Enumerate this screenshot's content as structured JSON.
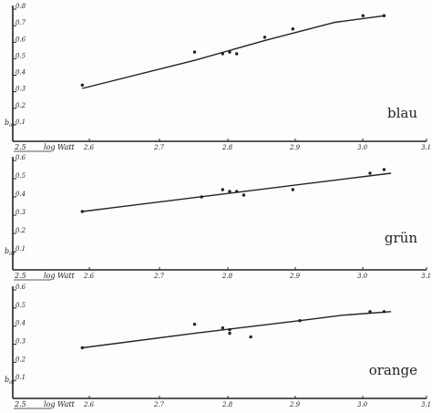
{
  "chart_data": [
    {
      "type": "scatter",
      "series_label": "blau",
      "ylabel": "b",
      "ylabel_sub": "01",
      "xlabel_left": "2.5",
      "xlabel_unit": "log Watt",
      "x_ticks": [
        "2.6",
        "2.7",
        "2.8",
        "2.9",
        "3.0",
        "3.1"
      ],
      "y_ticks": [
        "0.1",
        "0.2",
        "0.3",
        "0.4",
        "0.5",
        "0.6",
        "0.7",
        "0.8"
      ],
      "xlim": [
        2.5,
        3.1
      ],
      "ylim": [
        0,
        0.8
      ],
      "points": [
        {
          "x": 2.59,
          "y": 0.34
        },
        {
          "x": 2.75,
          "y": 0.54
        },
        {
          "x": 2.79,
          "y": 0.53
        },
        {
          "x": 2.8,
          "y": 0.54
        },
        {
          "x": 2.81,
          "y": 0.53
        },
        {
          "x": 2.85,
          "y": 0.63
        },
        {
          "x": 2.89,
          "y": 0.68
        },
        {
          "x": 2.99,
          "y": 0.76
        },
        {
          "x": 3.02,
          "y": 0.76
        }
      ],
      "fit_line": [
        {
          "x": 2.59,
          "y": 0.32
        },
        {
          "x": 2.75,
          "y": 0.49
        },
        {
          "x": 2.85,
          "y": 0.61
        },
        {
          "x": 2.95,
          "y": 0.72
        },
        {
          "x": 3.02,
          "y": 0.76
        }
      ]
    },
    {
      "type": "scatter",
      "series_label": "grün",
      "ylabel": "b",
      "ylabel_sub": "04",
      "xlabel_left": "2.5",
      "xlabel_unit": "log Watt",
      "x_ticks": [
        "2.6",
        "2.7",
        "2.8",
        "2.9",
        "3.0",
        "3.1"
      ],
      "y_ticks": [
        "0.1",
        "0.2",
        "0.3",
        "0.4",
        "0.5",
        "0.6"
      ],
      "xlim": [
        2.5,
        3.1
      ],
      "ylim": [
        0,
        0.6
      ],
      "points": [
        {
          "x": 2.59,
          "y": 0.32
        },
        {
          "x": 2.76,
          "y": 0.4
        },
        {
          "x": 2.79,
          "y": 0.44
        },
        {
          "x": 2.8,
          "y": 0.43
        },
        {
          "x": 2.81,
          "y": 0.43
        },
        {
          "x": 2.82,
          "y": 0.41
        },
        {
          "x": 2.89,
          "y": 0.44
        },
        {
          "x": 3.0,
          "y": 0.53
        },
        {
          "x": 3.02,
          "y": 0.55
        }
      ],
      "fit_line": [
        {
          "x": 2.59,
          "y": 0.32
        },
        {
          "x": 3.03,
          "y": 0.53
        }
      ]
    },
    {
      "type": "scatter",
      "series_label": "orange",
      "ylabel": "b",
      "ylabel_sub": "01",
      "xlabel_left": "2.5",
      "xlabel_unit": "log Watt",
      "x_ticks": [
        "2.6",
        "2.7",
        "2.8",
        "2.9",
        "3.0",
        "3.1"
      ],
      "y_ticks": [
        "0.1",
        "0.2",
        "0.3",
        "0.4",
        "0.5",
        "0.6"
      ],
      "xlim": [
        2.5,
        3.1
      ],
      "ylim": [
        0,
        0.6
      ],
      "points": [
        {
          "x": 2.59,
          "y": 0.28
        },
        {
          "x": 2.75,
          "y": 0.41
        },
        {
          "x": 2.79,
          "y": 0.39
        },
        {
          "x": 2.8,
          "y": 0.36
        },
        {
          "x": 2.8,
          "y": 0.38
        },
        {
          "x": 2.83,
          "y": 0.34
        },
        {
          "x": 2.9,
          "y": 0.43
        },
        {
          "x": 3.0,
          "y": 0.48
        },
        {
          "x": 3.02,
          "y": 0.48
        }
      ],
      "fit_line": [
        {
          "x": 2.59,
          "y": 0.28
        },
        {
          "x": 2.75,
          "y": 0.36
        },
        {
          "x": 2.9,
          "y": 0.43
        },
        {
          "x": 2.96,
          "y": 0.46
        },
        {
          "x": 3.03,
          "y": 0.48
        }
      ]
    }
  ]
}
